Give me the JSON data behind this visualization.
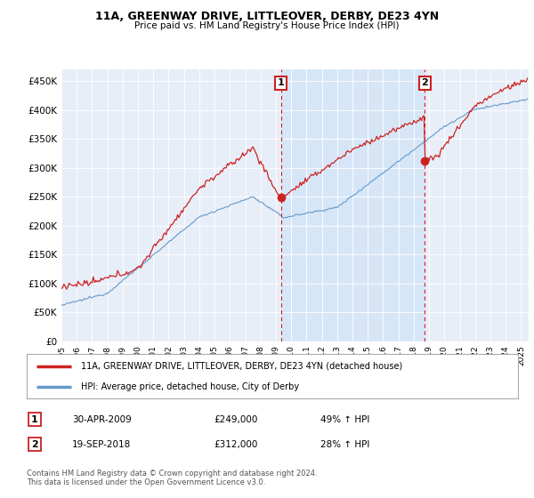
{
  "title": "11A, GREENWAY DRIVE, LITTLEOVER, DERBY, DE23 4YN",
  "subtitle": "Price paid vs. HM Land Registry's House Price Index (HPI)",
  "ylabel_ticks": [
    "£0",
    "£50K",
    "£100K",
    "£150K",
    "£200K",
    "£250K",
    "£300K",
    "£350K",
    "£400K",
    "£450K"
  ],
  "ytick_values": [
    0,
    50000,
    100000,
    150000,
    200000,
    250000,
    300000,
    350000,
    400000,
    450000
  ],
  "ylim": [
    0,
    470000
  ],
  "xlim_start": 1995.0,
  "xlim_end": 2025.5,
  "hpi_color": "#6699cc",
  "price_color": "#cc2222",
  "marker1_date": 2009.33,
  "marker2_date": 2018.72,
  "marker1_price": 249000,
  "marker2_price": 312000,
  "shade_color": "#d0e4f7",
  "legend_label_price": "11A, GREENWAY DRIVE, LITTLEOVER, DERBY, DE23 4YN (detached house)",
  "legend_label_hpi": "HPI: Average price, detached house, City of Derby",
  "table_row1": [
    "1",
    "30-APR-2009",
    "£249,000",
    "49% ↑ HPI"
  ],
  "table_row2": [
    "2",
    "19-SEP-2018",
    "£312,000",
    "28% ↑ HPI"
  ],
  "footnote": "Contains HM Land Registry data © Crown copyright and database right 2024.\nThis data is licensed under the Open Government Licence v3.0.",
  "fig_bg_color": "#ffffff",
  "plot_bg_color": "#e8eef8"
}
